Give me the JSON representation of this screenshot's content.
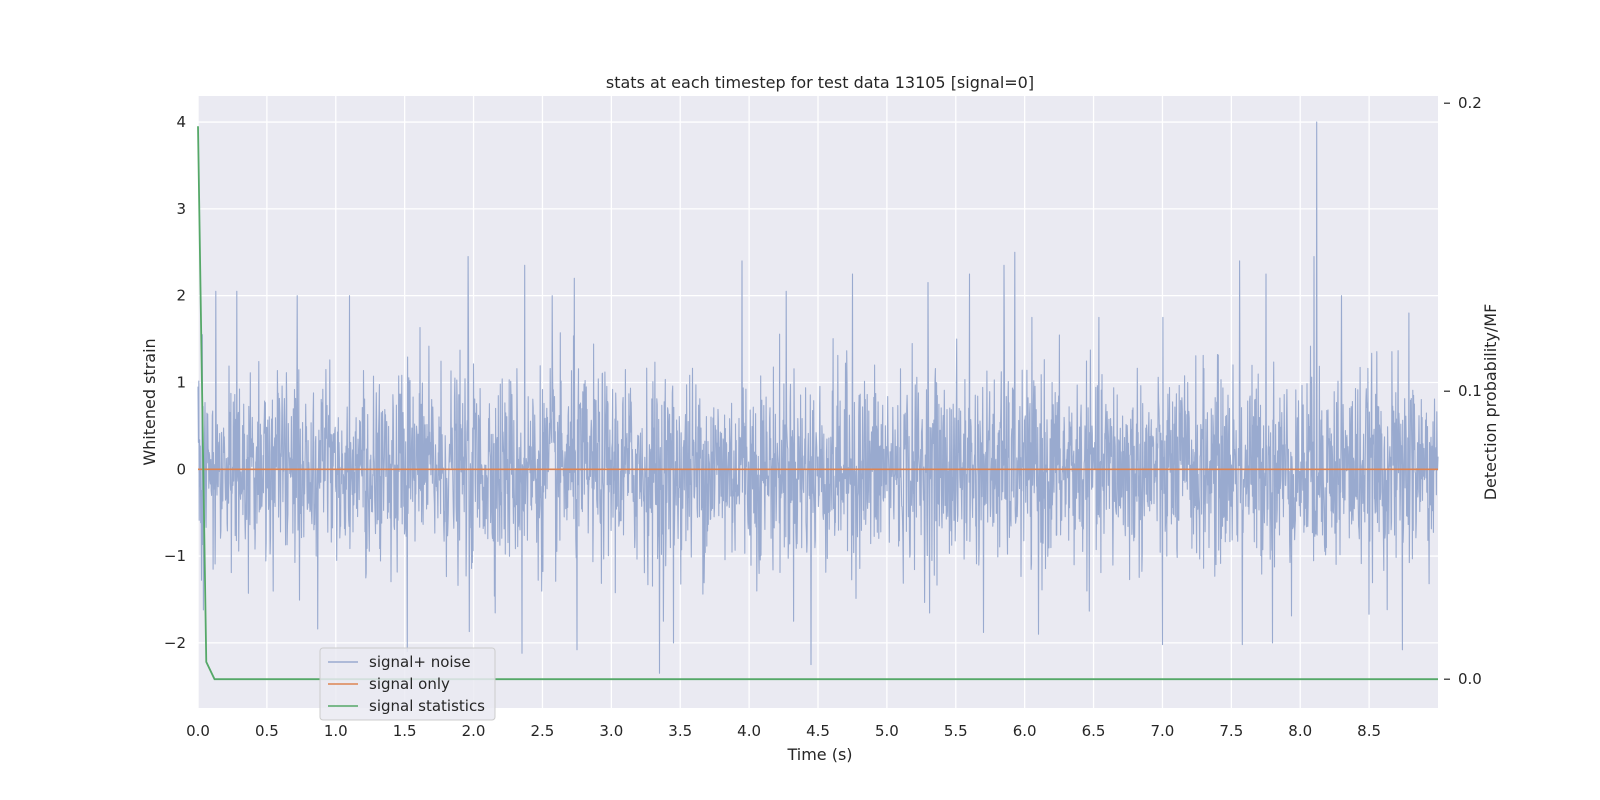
{
  "chart_data": {
    "type": "line",
    "title": "stats at each timestep for test data 13105 [signal=0]",
    "xlabel": "Time (s)",
    "ylabel": "Whitened strain",
    "y2label": "Detection probability/MF",
    "xlim": [
      0.0,
      9.0
    ],
    "ylim": [
      -2.75,
      4.3
    ],
    "y2lim": [
      -0.01,
      0.2025
    ],
    "xticks": [
      0.0,
      0.5,
      1.0,
      1.5,
      2.0,
      2.5,
      3.0,
      3.5,
      4.0,
      4.5,
      5.0,
      5.5,
      6.0,
      6.5,
      7.0,
      7.5,
      8.0,
      8.5
    ],
    "xtick_labels": [
      "0.0",
      "0.5",
      "1.0",
      "1.5",
      "2.0",
      "2.5",
      "3.0",
      "3.5",
      "4.0",
      "4.5",
      "5.0",
      "5.5",
      "6.0",
      "6.5",
      "7.0",
      "7.5",
      "8.0",
      "8.5"
    ],
    "yticks": [
      -2,
      -1,
      0,
      1,
      2,
      3,
      4
    ],
    "ytick_labels": [
      "−2",
      "−1",
      "0",
      "1",
      "2",
      "3",
      "4"
    ],
    "y2ticks": [
      0.0,
      0.1,
      0.2
    ],
    "y2tick_labels": [
      "0.0",
      "0.1",
      "0.2"
    ],
    "grid": true,
    "legend_position": "lower-left",
    "series": [
      {
        "name": "signal+ noise",
        "axis": "left",
        "color": "#99aacf",
        "peaks": [
          {
            "x": 0.03,
            "y": 1.55
          },
          {
            "x": 0.13,
            "y": 2.05
          },
          {
            "x": 0.28,
            "y": 2.05
          },
          {
            "x": 0.72,
            "y": 2.0
          },
          {
            "x": 1.1,
            "y": 2.0
          },
          {
            "x": 1.96,
            "y": 2.45
          },
          {
            "x": 2.37,
            "y": 2.35
          },
          {
            "x": 2.57,
            "y": 2.0
          },
          {
            "x": 2.73,
            "y": 2.2
          },
          {
            "x": 3.95,
            "y": 2.4
          },
          {
            "x": 4.27,
            "y": 2.05
          },
          {
            "x": 4.75,
            "y": 2.25
          },
          {
            "x": 5.3,
            "y": 2.15
          },
          {
            "x": 5.6,
            "y": 2.25
          },
          {
            "x": 5.85,
            "y": 2.35
          },
          {
            "x": 5.93,
            "y": 2.5
          },
          {
            "x": 7.56,
            "y": 2.4
          },
          {
            "x": 7.75,
            "y": 2.25
          },
          {
            "x": 8.1,
            "y": 2.45
          },
          {
            "x": 8.12,
            "y": 4.0
          },
          {
            "x": 8.3,
            "y": 2.0
          },
          {
            "x": 8.79,
            "y": 1.8
          }
        ],
        "troughs": [
          {
            "x": 0.04,
            "y": -1.62
          },
          {
            "x": 0.87,
            "y": -1.84
          },
          {
            "x": 1.52,
            "y": -2.1
          },
          {
            "x": 1.97,
            "y": -1.87
          },
          {
            "x": 2.35,
            "y": -2.12
          },
          {
            "x": 2.75,
            "y": -2.08
          },
          {
            "x": 3.35,
            "y": -2.35
          },
          {
            "x": 3.45,
            "y": -2.0
          },
          {
            "x": 4.45,
            "y": -2.25
          },
          {
            "x": 5.7,
            "y": -1.88
          },
          {
            "x": 6.1,
            "y": -1.9
          },
          {
            "x": 7.0,
            "y": -2.02
          },
          {
            "x": 7.58,
            "y": -2.02
          },
          {
            "x": 7.8,
            "y": -2.0
          },
          {
            "x": 8.74,
            "y": -2.08
          }
        ]
      },
      {
        "name": "signal only",
        "axis": "left",
        "color": "#dd8452",
        "x": [
          0.0,
          9.0
        ],
        "y": [
          0.0,
          0.0
        ]
      },
      {
        "name": "signal statistics",
        "axis": "right",
        "color": "#55a868",
        "x": [
          0.0,
          0.06,
          0.12,
          0.5,
          1.0,
          2.0,
          3.0,
          4.0,
          5.0,
          6.0,
          7.0,
          8.0,
          9.0
        ],
        "y": [
          0.192,
          0.006,
          0.0,
          0.0,
          0.0,
          0.0,
          0.0,
          0.0,
          0.0,
          0.0,
          0.0,
          0.0,
          0.0
        ]
      }
    ]
  }
}
